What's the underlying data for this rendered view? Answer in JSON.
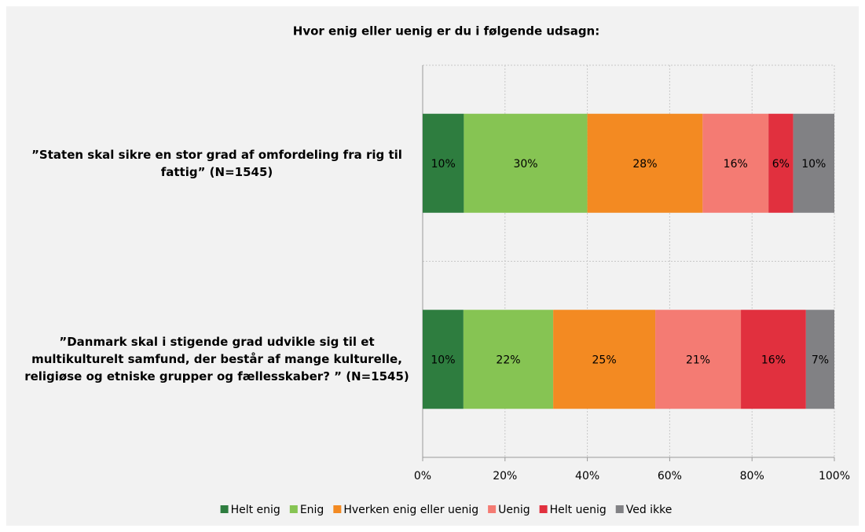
{
  "chart_data": {
    "type": "stacked_barh",
    "title": "Hvor enig eller uenig er du i følgende udsagn:",
    "categories": [
      "”Staten skal sikre en stor grad af omfordeling fra rig til fattig” (N=1545)",
      "”Danmark skal i stigende grad udvikle sig til et multikulturelt samfund, der består af mange kulturelle, religiøse og etniske grupper og fællesskaber? ” (N=1545)"
    ],
    "series": [
      {
        "name": "Helt enig",
        "color": "#2e7d3f",
        "values": [
          10,
          9.9
        ],
        "value_labels": [
          "10%",
          "10%"
        ]
      },
      {
        "name": "Enig",
        "color": "#86c453",
        "values": [
          30,
          21.8
        ],
        "value_labels": [
          "30%",
          "22%"
        ]
      },
      {
        "name": "Hverken enig eller uenig",
        "color": "#f38a22",
        "values": [
          28,
          24.8
        ],
        "value_labels": [
          "28%",
          "25%"
        ]
      },
      {
        "name": "Uenig",
        "color": "#f47b73",
        "values": [
          16,
          20.8
        ],
        "value_labels": [
          "16%",
          "21%"
        ]
      },
      {
        "name": "Helt uenig",
        "color": "#e1303e",
        "values": [
          6,
          15.8
        ],
        "value_labels": [
          "6%",
          "16%"
        ]
      },
      {
        "name": "Ved ikke",
        "color": "#818184",
        "values": [
          10,
          6.9
        ],
        "value_labels": [
          "10%",
          "7%"
        ]
      }
    ],
    "xlim": [
      0,
      100
    ],
    "xticks": [
      {
        "value": 0,
        "label": "0%"
      },
      {
        "value": 20,
        "label": "20%"
      },
      {
        "value": 40,
        "label": "40%"
      },
      {
        "value": 60,
        "label": "60%"
      },
      {
        "value": 80,
        "label": "80%"
      },
      {
        "value": 100,
        "label": "100%"
      }
    ],
    "grid": true,
    "legend": "bottom"
  }
}
